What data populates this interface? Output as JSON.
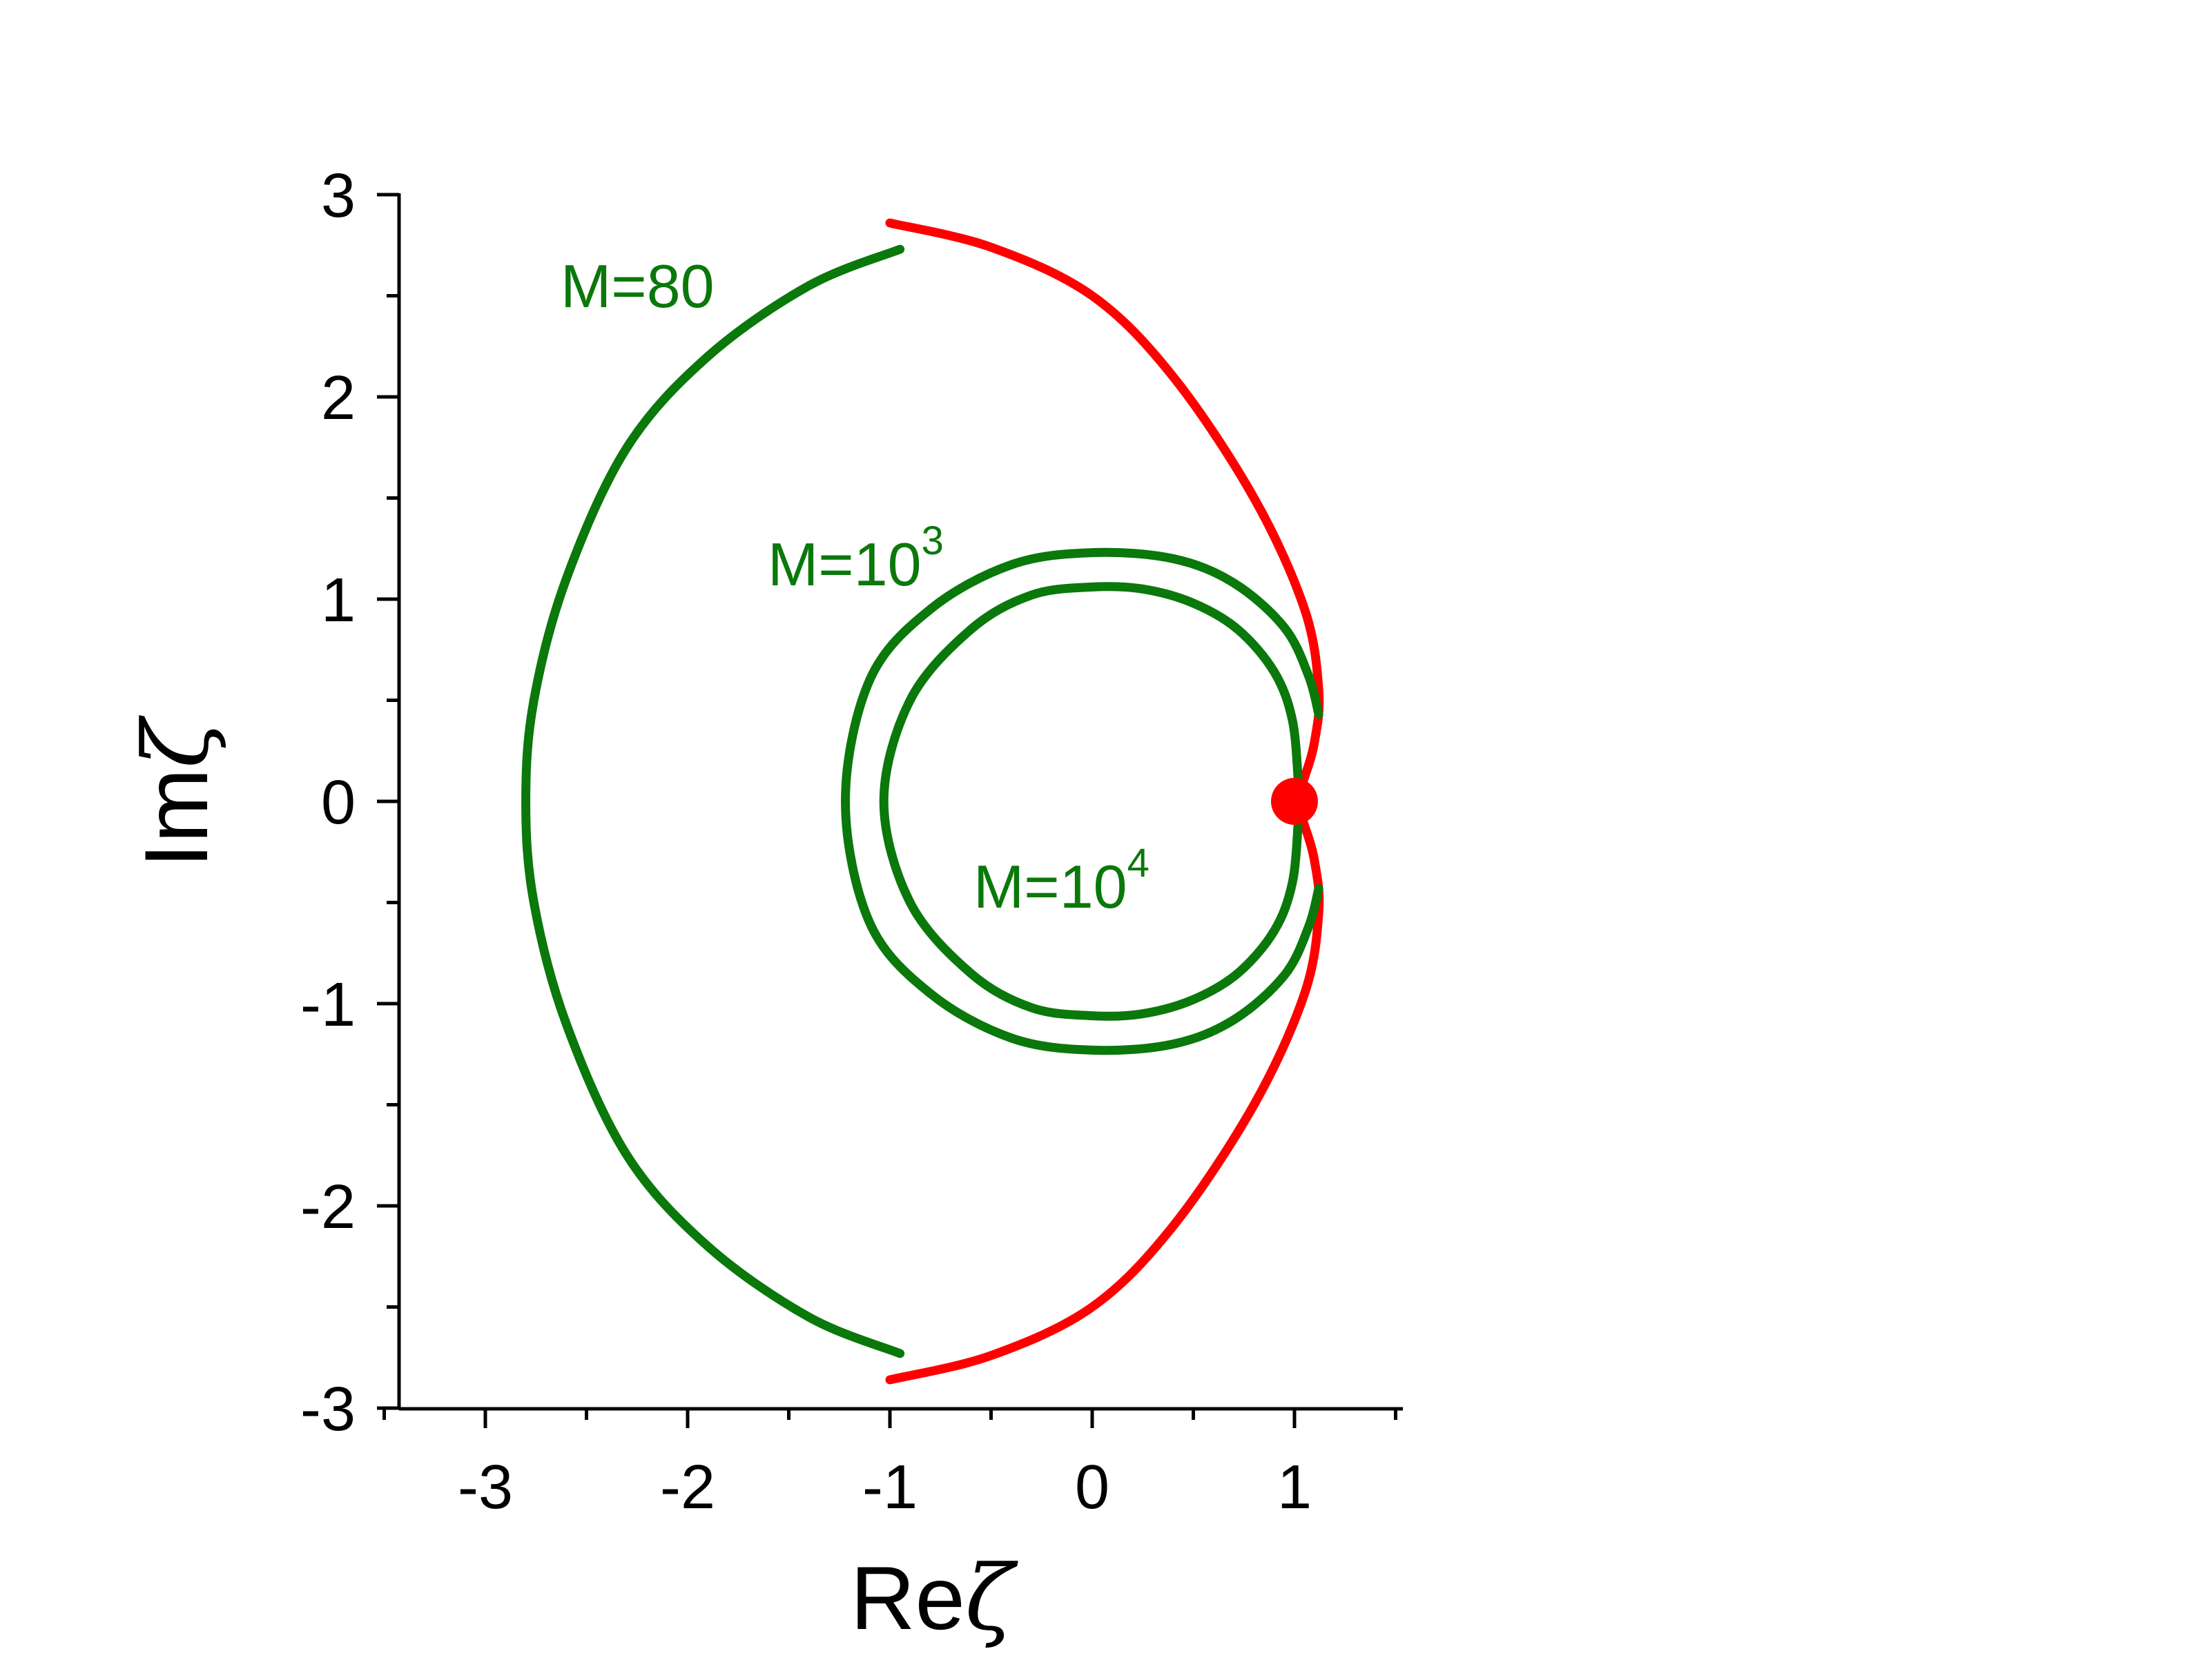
{
  "colors": {
    "stable": "#0a780a",
    "unstable": "#ff0000"
  },
  "chart_data": {
    "type": "line",
    "xlabel": {
      "main": "Re",
      "symbol": "ζ"
    },
    "ylabel": {
      "main": "Im",
      "symbol": "ζ"
    },
    "xlim": [
      -3.5,
      1.5
    ],
    "ylim": [
      -3,
      3
    ],
    "xticks": [
      "-3",
      "-2",
      "-1",
      "0",
      "1"
    ],
    "yticks": [
      "3",
      "2",
      "1",
      "0",
      "-1",
      "-2",
      "-3"
    ],
    "annotations": [
      {
        "id": "m80",
        "text": "M=80",
        "sup": ""
      },
      {
        "id": "m1e3",
        "text": "M=10",
        "sup": "3"
      },
      {
        "id": "m1e4",
        "text": "M=10",
        "sup": "4"
      }
    ],
    "point": {
      "x": 1.0,
      "y": 0.0,
      "color": "#ff0000"
    },
    "series": [
      {
        "id": "m80-green-arc",
        "color": "#0a780a",
        "points": [
          [
            -0.95,
            2.73
          ],
          [
            -1.4,
            2.55
          ],
          [
            -1.9,
            2.2
          ],
          [
            -2.3,
            1.75
          ],
          [
            -2.6,
            1.1
          ],
          [
            -2.76,
            0.5
          ],
          [
            -2.8,
            0.0
          ],
          [
            -2.76,
            -0.5
          ],
          [
            -2.6,
            -1.1
          ],
          [
            -2.3,
            -1.75
          ],
          [
            -1.9,
            -2.2
          ],
          [
            -1.4,
            -2.55
          ],
          [
            -0.95,
            -2.73
          ]
        ]
      },
      {
        "id": "m80-red-upper",
        "color": "#ff0000",
        "points": [
          [
            -1.0,
            2.86
          ],
          [
            -0.5,
            2.74
          ],
          [
            0.0,
            2.5
          ],
          [
            0.4,
            2.1
          ],
          [
            0.8,
            1.5
          ],
          [
            1.05,
            0.95
          ],
          [
            1.12,
            0.55
          ],
          [
            1.1,
            0.3
          ],
          [
            1.05,
            0.12
          ],
          [
            1.0,
            0.0
          ]
        ]
      },
      {
        "id": "m80-red-lower",
        "color": "#ff0000",
        "points": [
          [
            -1.0,
            -2.86
          ],
          [
            -0.5,
            -2.74
          ],
          [
            0.0,
            -2.5
          ],
          [
            0.4,
            -2.1
          ],
          [
            0.8,
            -1.5
          ],
          [
            1.05,
            -0.95
          ],
          [
            1.12,
            -0.55
          ],
          [
            1.1,
            -0.3
          ],
          [
            1.05,
            -0.12
          ],
          [
            1.0,
            0.0
          ]
        ]
      },
      {
        "id": "m1e3-green",
        "color": "#0a780a",
        "points": [
          [
            1.12,
            0.43
          ],
          [
            1.07,
            0.62
          ],
          [
            0.95,
            0.86
          ],
          [
            0.7,
            1.08
          ],
          [
            0.4,
            1.2
          ],
          [
            0.0,
            1.23
          ],
          [
            -0.4,
            1.17
          ],
          [
            -0.8,
            0.95
          ],
          [
            -1.1,
            0.6
          ],
          [
            -1.22,
            0.0
          ],
          [
            -1.1,
            -0.6
          ],
          [
            -0.8,
            -0.95
          ],
          [
            -0.4,
            -1.17
          ],
          [
            0.0,
            -1.23
          ],
          [
            0.4,
            -1.2
          ],
          [
            0.7,
            -1.08
          ],
          [
            0.95,
            -0.86
          ],
          [
            1.07,
            -0.62
          ],
          [
            1.12,
            -0.43
          ]
        ]
      },
      {
        "id": "m1e4-green",
        "color": "#0a780a",
        "points": [
          [
            1.02,
            0.08
          ],
          [
            0.99,
            0.4
          ],
          [
            0.9,
            0.64
          ],
          [
            0.72,
            0.85
          ],
          [
            0.5,
            0.98
          ],
          [
            0.25,
            1.05
          ],
          [
            0.0,
            1.06
          ],
          [
            -0.3,
            1.02
          ],
          [
            -0.6,
            0.85
          ],
          [
            -0.9,
            0.5
          ],
          [
            -1.03,
            0.0
          ],
          [
            -0.9,
            -0.5
          ],
          [
            -0.6,
            -0.85
          ],
          [
            -0.3,
            -1.02
          ],
          [
            0.0,
            -1.06
          ],
          [
            0.25,
            -1.05
          ],
          [
            0.5,
            -0.98
          ],
          [
            0.72,
            -0.85
          ],
          [
            0.9,
            -0.64
          ],
          [
            0.99,
            -0.4
          ],
          [
            1.02,
            -0.08
          ]
        ]
      }
    ]
  }
}
